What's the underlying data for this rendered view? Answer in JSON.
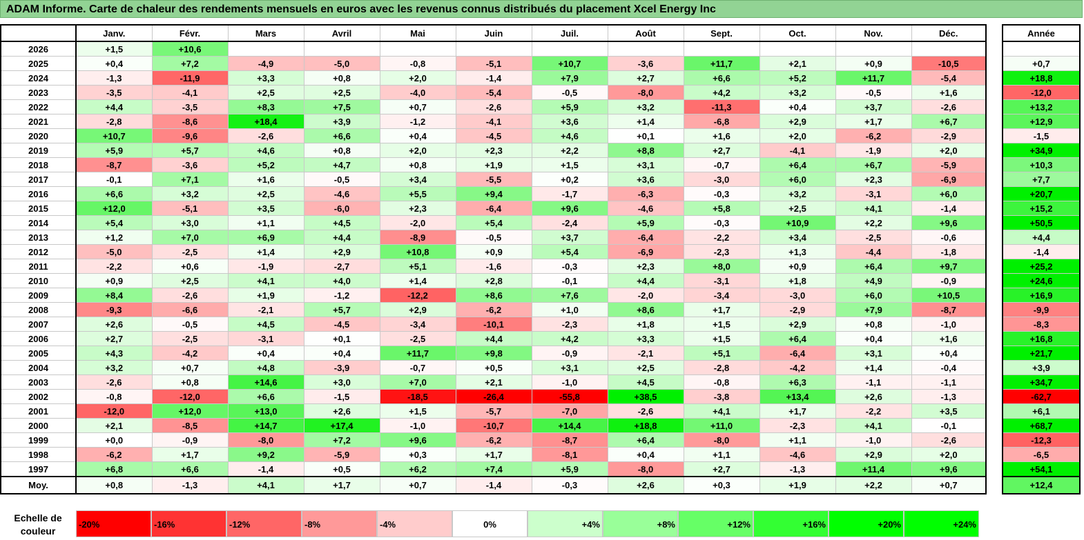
{
  "title": "ADAM Informe. Carte de chaleur des rendements mensuels en euros avec les revenus connus distribués du placement Xcel Energy Inc",
  "chart_data": {
    "type": "heatmap",
    "title": "ADAM Informe. Carte de chaleur des rendements mensuels en euros avec les revenus connus distribués du placement Xcel Energy Inc",
    "months": [
      "Janv.",
      "Févr.",
      "Mars",
      "Avril",
      "Mai",
      "Juin",
      "Juil.",
      "Août",
      "Sept.",
      "Oct.",
      "Nov.",
      "Déc."
    ],
    "year_header": "Année",
    "rows": [
      {
        "year": "2026",
        "months": [
          "+1,5",
          "+10,6",
          "",
          "",
          "",
          "",
          "",
          "",
          "",
          "",
          "",
          ""
        ],
        "annual": ""
      },
      {
        "year": "2025",
        "months": [
          "+0,4",
          "+7,2",
          "-4,9",
          "-5,0",
          "-0,8",
          "-5,1",
          "+10,7",
          "-3,6",
          "+11,7",
          "+2,1",
          "+0,9",
          "-10,5"
        ],
        "annual": "+0,7"
      },
      {
        "year": "2024",
        "months": [
          "-1,3",
          "-11,9",
          "+3,3",
          "+0,8",
          "+2,0",
          "-1,4",
          "+7,9",
          "+2,7",
          "+6,6",
          "+5,2",
          "+11,7",
          "-5,4"
        ],
        "annual": "+18,8"
      },
      {
        "year": "2023",
        "months": [
          "-3,5",
          "-4,1",
          "+2,5",
          "+2,5",
          "-4,0",
          "-5,4",
          "-0,5",
          "-8,0",
          "+4,2",
          "+3,2",
          "-0,5",
          "+1,6"
        ],
        "annual": "-12,0"
      },
      {
        "year": "2022",
        "months": [
          "+4,4",
          "-3,5",
          "+8,3",
          "+7,5",
          "+0,7",
          "-2,6",
          "+5,9",
          "+3,2",
          "-11,3",
          "+0,4",
          "+3,7",
          "-2,6"
        ],
        "annual": "+13,2"
      },
      {
        "year": "2021",
        "months": [
          "-2,8",
          "-8,6",
          "+18,4",
          "+3,9",
          "-1,2",
          "-4,1",
          "+3,6",
          "+1,4",
          "-6,8",
          "+2,9",
          "+1,7",
          "+6,7"
        ],
        "annual": "+12,9"
      },
      {
        "year": "2020",
        "months": [
          "+10,7",
          "-9,6",
          "-2,6",
          "+6,6",
          "+0,4",
          "-4,5",
          "+4,6",
          "+0,1",
          "+1,6",
          "+2,0",
          "-6,2",
          "-2,9"
        ],
        "annual": "-1,5"
      },
      {
        "year": "2019",
        "months": [
          "+5,9",
          "+5,7",
          "+4,6",
          "+0,8",
          "+2,0",
          "+2,3",
          "+2,2",
          "+8,8",
          "+2,7",
          "-4,1",
          "-1,9",
          "+2,0"
        ],
        "annual": "+34,9"
      },
      {
        "year": "2018",
        "months": [
          "-8,7",
          "-3,6",
          "+5,2",
          "+4,7",
          "+0,8",
          "+1,9",
          "+1,5",
          "+3,1",
          "-0,7",
          "+6,4",
          "+6,7",
          "-5,9"
        ],
        "annual": "+10,3"
      },
      {
        "year": "2017",
        "months": [
          "-0,1",
          "+7,1",
          "+1,6",
          "-0,5",
          "+3,4",
          "-5,5",
          "+0,2",
          "+3,6",
          "-3,0",
          "+6,0",
          "+2,3",
          "-6,9"
        ],
        "annual": "+7,7"
      },
      {
        "year": "2016",
        "months": [
          "+6,6",
          "+3,2",
          "+2,5",
          "-4,6",
          "+5,5",
          "+9,4",
          "-1,7",
          "-6,3",
          "-0,3",
          "+3,2",
          "-3,1",
          "+6,0"
        ],
        "annual": "+20,7"
      },
      {
        "year": "2015",
        "months": [
          "+12,0",
          "-5,1",
          "+3,5",
          "-6,0",
          "+2,3",
          "-6,4",
          "+9,6",
          "-4,6",
          "+5,8",
          "+2,5",
          "+4,1",
          "-1,4"
        ],
        "annual": "+15,2"
      },
      {
        "year": "2014",
        "months": [
          "+5,4",
          "+3,0",
          "+1,1",
          "+4,5",
          "-2,0",
          "+5,4",
          "-2,4",
          "+5,9",
          "-0,3",
          "+10,9",
          "+2,2",
          "+9,6"
        ],
        "annual": "+50,5"
      },
      {
        "year": "2013",
        "months": [
          "+1,2",
          "+7,0",
          "+6,9",
          "+4,4",
          "-8,9",
          "-0,5",
          "+3,7",
          "-6,4",
          "-2,2",
          "+3,4",
          "-2,5",
          "-0,6"
        ],
        "annual": "+4,4"
      },
      {
        "year": "2012",
        "months": [
          "-5,0",
          "-2,5",
          "+1,4",
          "+2,9",
          "+10,8",
          "+0,9",
          "+5,4",
          "-6,9",
          "-2,3",
          "+1,3",
          "-4,4",
          "-1,8"
        ],
        "annual": "-1,4"
      },
      {
        "year": "2011",
        "months": [
          "-2,2",
          "+0,6",
          "-1,9",
          "-2,7",
          "+5,1",
          "-1,6",
          "-0,3",
          "+2,3",
          "+8,0",
          "+0,9",
          "+6,4",
          "+9,7"
        ],
        "annual": "+25,2"
      },
      {
        "year": "2010",
        "months": [
          "+0,9",
          "+2,5",
          "+4,1",
          "+4,0",
          "+1,4",
          "+2,8",
          "-0,1",
          "+4,4",
          "-3,1",
          "+1,8",
          "+4,9",
          "-0,9"
        ],
        "annual": "+24,6"
      },
      {
        "year": "2009",
        "months": [
          "+8,4",
          "-2,6",
          "+1,9",
          "-1,2",
          "-12,2",
          "+8,6",
          "+7,6",
          "-2,0",
          "-3,4",
          "-3,0",
          "+6,0",
          "+10,5"
        ],
        "annual": "+16,9"
      },
      {
        "year": "2008",
        "months": [
          "-9,3",
          "-6,6",
          "-2,1",
          "+5,7",
          "+2,9",
          "-6,2",
          "+1,0",
          "+8,6",
          "+1,7",
          "-2,9",
          "+7,9",
          "-8,7"
        ],
        "annual": "-9,9"
      },
      {
        "year": "2007",
        "months": [
          "+2,6",
          "-0,5",
          "+4,5",
          "-4,5",
          "-3,4",
          "-10,1",
          "-2,3",
          "+1,8",
          "+1,5",
          "+2,9",
          "+0,8",
          "-1,0"
        ],
        "annual": "-8,3"
      },
      {
        "year": "2006",
        "months": [
          "+2,7",
          "-2,5",
          "-3,1",
          "+0,1",
          "-2,5",
          "+4,4",
          "+4,2",
          "+3,3",
          "+1,5",
          "+6,4",
          "+0,4",
          "+1,6"
        ],
        "annual": "+16,8"
      },
      {
        "year": "2005",
        "months": [
          "+4,3",
          "-4,2",
          "+0,4",
          "+0,4",
          "+11,7",
          "+9,8",
          "-0,9",
          "-2,1",
          "+5,1",
          "-6,4",
          "+3,1",
          "+0,4"
        ],
        "annual": "+21,7"
      },
      {
        "year": "2004",
        "months": [
          "+3,2",
          "+0,7",
          "+4,8",
          "-3,9",
          "-0,7",
          "+0,5",
          "+3,1",
          "+2,5",
          "-2,8",
          "-4,2",
          "+1,4",
          "-0,4"
        ],
        "annual": "+3,9"
      },
      {
        "year": "2003",
        "months": [
          "-2,6",
          "+0,8",
          "+14,6",
          "+3,0",
          "+7,0",
          "+2,1",
          "-1,0",
          "+4,5",
          "-0,8",
          "+6,3",
          "-1,1",
          "-1,1"
        ],
        "annual": "+34,7"
      },
      {
        "year": "2002",
        "months": [
          "-0,8",
          "-12,0",
          "+6,6",
          "-1,5",
          "-18,5",
          "-26,4",
          "-55,8",
          "+38,5",
          "-3,8",
          "+13,4",
          "+2,6",
          "-1,3"
        ],
        "annual": "-62,7"
      },
      {
        "year": "2001",
        "months": [
          "-12,0",
          "+12,0",
          "+13,0",
          "+2,6",
          "+1,5",
          "-5,7",
          "-7,0",
          "-2,6",
          "+4,1",
          "+1,7",
          "-2,2",
          "+3,5"
        ],
        "annual": "+6,1"
      },
      {
        "year": "2000",
        "months": [
          "+2,1",
          "-8,5",
          "+14,7",
          "+17,4",
          "-1,0",
          "-10,7",
          "+14,4",
          "+18,8",
          "+11,0",
          "-2,3",
          "+4,1",
          "-0,1"
        ],
        "annual": "+68,7"
      },
      {
        "year": "1999",
        "months": [
          "+0,0",
          "-0,9",
          "-8,0",
          "+7,2",
          "+9,6",
          "-6,2",
          "-8,7",
          "+6,4",
          "-8,0",
          "+1,1",
          "-1,0",
          "-2,6"
        ],
        "annual": "-12,3"
      },
      {
        "year": "1998",
        "months": [
          "-6,2",
          "+1,7",
          "+9,2",
          "-5,9",
          "+0,3",
          "+1,7",
          "-8,1",
          "+0,4",
          "+1,1",
          "-4,6",
          "+2,9",
          "+2,0"
        ],
        "annual": "-6,5"
      },
      {
        "year": "1997",
        "months": [
          "+6,8",
          "+6,6",
          "-1,4",
          "+0,5",
          "+6,2",
          "+7,4",
          "+5,9",
          "-8,0",
          "+2,7",
          "-1,3",
          "+11,4",
          "+9,6"
        ],
        "annual": "+54,1"
      }
    ],
    "average": {
      "label": "Moy.",
      "months": [
        "+0,8",
        "-1,3",
        "+4,1",
        "+1,7",
        "+0,7",
        "-1,4",
        "-0,3",
        "+2,6",
        "+0,3",
        "+1,9",
        "+2,2",
        "+0,7"
      ],
      "annual": "+12,4"
    },
    "scale": {
      "label": "Echelle de couleur",
      "steps": [
        "-20%",
        "-16%",
        "-12%",
        "-8%",
        "-4%",
        "0%",
        "+4%",
        "+8%",
        "+12%",
        "+16%",
        "+20%",
        "+24%"
      ],
      "colors": [
        "#ff0000",
        "#ff3333",
        "#ff6666",
        "#ff9999",
        "#ffcccc",
        "#ffffff",
        "#ccffcc",
        "#99ff99",
        "#66ff66",
        "#33ff33",
        "#00ff00",
        "#00ff00"
      ]
    }
  }
}
